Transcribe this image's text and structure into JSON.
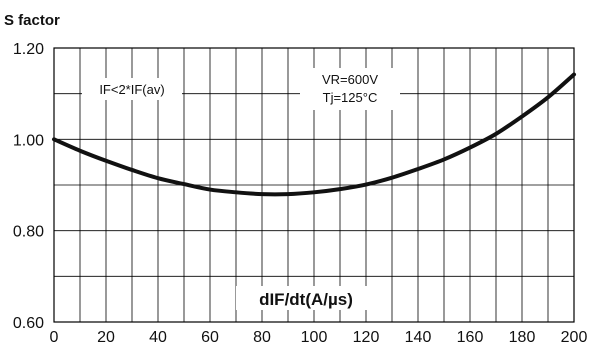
{
  "chart_data": {
    "type": "line",
    "title": "",
    "ylabel": "S factor",
    "xlabel": "dIF/dt(A/µs)",
    "xlim": [
      0,
      200
    ],
    "ylim": [
      0.6,
      1.2
    ],
    "x_ticks": [
      "0",
      "20",
      "40",
      "60",
      "80",
      "100",
      "120",
      "140",
      "160",
      "180",
      "200"
    ],
    "y_ticks": [
      "0.60",
      "0.80",
      "1.00",
      "1.20"
    ],
    "grid": true,
    "annotations": [
      "IF<2*IF(av)",
      "VR=600V",
      "Tj=125°C"
    ],
    "series": [
      {
        "x": [
          0,
          10,
          20,
          30,
          40,
          50,
          60,
          70,
          80,
          90,
          100,
          110,
          120,
          130,
          140,
          150,
          160,
          170,
          180,
          190,
          200
        ],
        "y": [
          1.0,
          0.975,
          0.953,
          0.933,
          0.915,
          0.902,
          0.89,
          0.884,
          0.88,
          0.88,
          0.884,
          0.891,
          0.901,
          0.916,
          0.935,
          0.956,
          0.982,
          1.012,
          1.05,
          1.092,
          1.142
        ]
      }
    ]
  }
}
